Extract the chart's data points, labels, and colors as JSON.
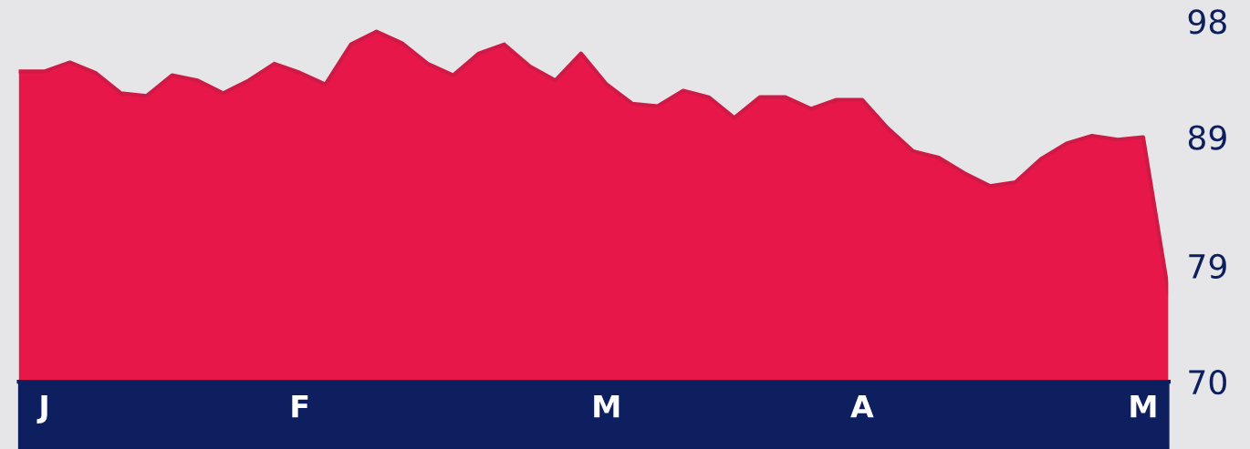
{
  "chart_data": {
    "type": "area",
    "color": "#e8174a",
    "categories": [
      null,
      "J",
      null,
      null,
      null,
      null,
      null,
      null,
      null,
      null,
      null,
      "F",
      null,
      null,
      null,
      null,
      null,
      null,
      null,
      null,
      null,
      null,
      null,
      "M",
      null,
      null,
      null,
      null,
      null,
      null,
      null,
      null,
      null,
      "A",
      null,
      null,
      null,
      null,
      null,
      null,
      null,
      null,
      null,
      null,
      "M",
      null
    ],
    "values": [
      94.1,
      94.1,
      94.8,
      94.0,
      92.4,
      92.2,
      93.8,
      93.4,
      92.4,
      93.4,
      94.7,
      94.0,
      93.1,
      96.2,
      97.2,
      96.3,
      94.7,
      93.8,
      95.5,
      96.2,
      94.5,
      93.4,
      95.5,
      93.1,
      91.6,
      91.4,
      92.6,
      92.1,
      90.5,
      92.1,
      92.1,
      91.2,
      91.9,
      91.9,
      89.7,
      87.9,
      87.4,
      86.2,
      85.2,
      85.5,
      87.3,
      88.5,
      89.1,
      88.8,
      89.0,
      76.8
    ],
    "ylim": [
      70,
      98.6
    ],
    "yticks": [
      70,
      79,
      89,
      98
    ],
    "grid": false,
    "legend": false
  }
}
